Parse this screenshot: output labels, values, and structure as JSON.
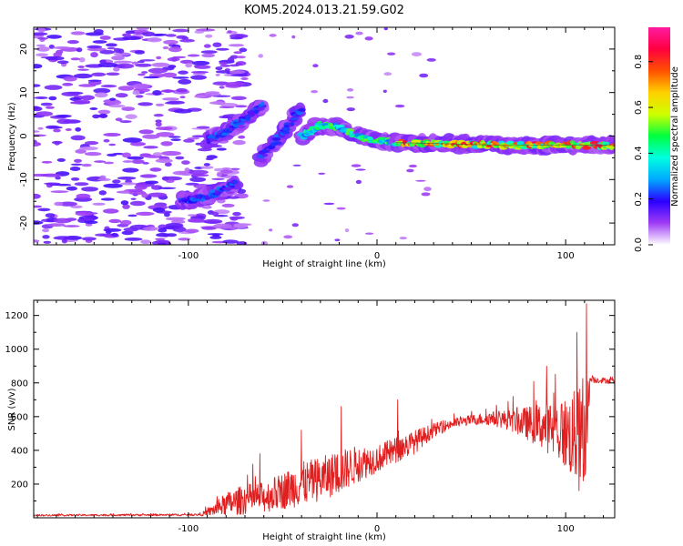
{
  "title": "KOM5.2024.013.21.59.G02",
  "chart_data": [
    {
      "type": "heatmap",
      "xlabel": "Height of straight line (km)",
      "ylabel": "Frequency (Hz)",
      "xlim": [
        -182,
        126
      ],
      "ylim": [
        -25,
        25
      ],
      "xticks": [
        -100,
        0,
        100
      ],
      "xtick_labels": [
        "-100",
        "0",
        "100"
      ],
      "yticks": [
        -20,
        -10,
        0,
        10,
        20
      ],
      "ytick_labels": [
        "-20",
        "-10",
        "0",
        "10",
        "20"
      ],
      "colorbar": {
        "label": "Normalized spectral amplitude",
        "range": [
          0,
          0.95
        ],
        "ticks": [
          0.0,
          0.2,
          0.4,
          0.6,
          0.8
        ],
        "tick_labels": [
          "0.0",
          "0.2",
          "0.4",
          "0.6",
          "0.8"
        ],
        "colormap": [
          "#ffffff",
          "#9f3cf5",
          "#2a00ff",
          "#00a8ff",
          "#00ffe0",
          "#00ff40",
          "#cfff00",
          "#ffd000",
          "#ff5000",
          "#ff0040",
          "#ff1aa0"
        ]
      },
      "ridges": [
        {
          "x": [
            -104,
            -90,
            -80,
            -75
          ],
          "y": [
            -15,
            -14,
            -12,
            -11
          ]
        },
        {
          "x": [
            -90,
            -80,
            -70,
            -60
          ],
          "y": [
            -1,
            1,
            4,
            7
          ]
        },
        {
          "x": [
            -62,
            -55,
            -48,
            -40
          ],
          "y": [
            -5,
            -2,
            2,
            6
          ]
        },
        {
          "x": [
            -40,
            -30,
            -20,
            -10,
            0,
            10
          ],
          "y": [
            0,
            2.5,
            2,
            0,
            -1,
            -1.5
          ]
        },
        {
          "x": [
            10,
            40,
            70,
            100,
            126
          ],
          "y": [
            -1.5,
            -1.8,
            -2.2,
            -2.0,
            -2.2
          ]
        }
      ],
      "noise_region": {
        "x": [
          -182,
          -90
        ],
        "y": [
          -25,
          25
        ]
      }
    },
    {
      "type": "line",
      "xlabel": "Height of straight line (km)",
      "ylabel": "SNR (v/v)",
      "xlim": [
        -182,
        126
      ],
      "ylim": [
        0,
        1290
      ],
      "xticks": [
        -100,
        0,
        100
      ],
      "xtick_labels": [
        "-100",
        "0",
        "100"
      ],
      "yticks": [
        200,
        400,
        600,
        800,
        1000,
        1200
      ],
      "ytick_labels": [
        "200",
        "400",
        "600",
        "800",
        "1000",
        "1200"
      ],
      "series_color": "#e02020",
      "envelope": {
        "x": [
          -182,
          -95,
          -90,
          -80,
          -70,
          -60,
          -50,
          -40,
          -30,
          -20,
          -10,
          0,
          10,
          20,
          30,
          40,
          50,
          60,
          70,
          80,
          90,
          100,
          105,
          110,
          113,
          126
        ],
        "base": [
          15,
          18,
          30,
          80,
          110,
          120,
          160,
          200,
          230,
          270,
          320,
          350,
          400,
          450,
          520,
          560,
          580,
          590,
          580,
          560,
          540,
          500,
          480,
          420,
          820,
          810
        ],
        "noise": [
          5,
          6,
          20,
          70,
          90,
          90,
          110,
          130,
          130,
          130,
          110,
          80,
          80,
          70,
          40,
          30,
          30,
          40,
          60,
          100,
          150,
          220,
          280,
          380,
          20,
          15
        ]
      },
      "peaks": [
        {
          "x": -62,
          "y": 380
        },
        {
          "x": -40,
          "y": 520
        },
        {
          "x": -19,
          "y": 660
        },
        {
          "x": 11,
          "y": 700
        },
        {
          "x": 72,
          "y": 720
        },
        {
          "x": 90,
          "y": 900
        },
        {
          "x": 106,
          "y": 1100
        },
        {
          "x": 111,
          "y": 1270
        }
      ]
    }
  ]
}
